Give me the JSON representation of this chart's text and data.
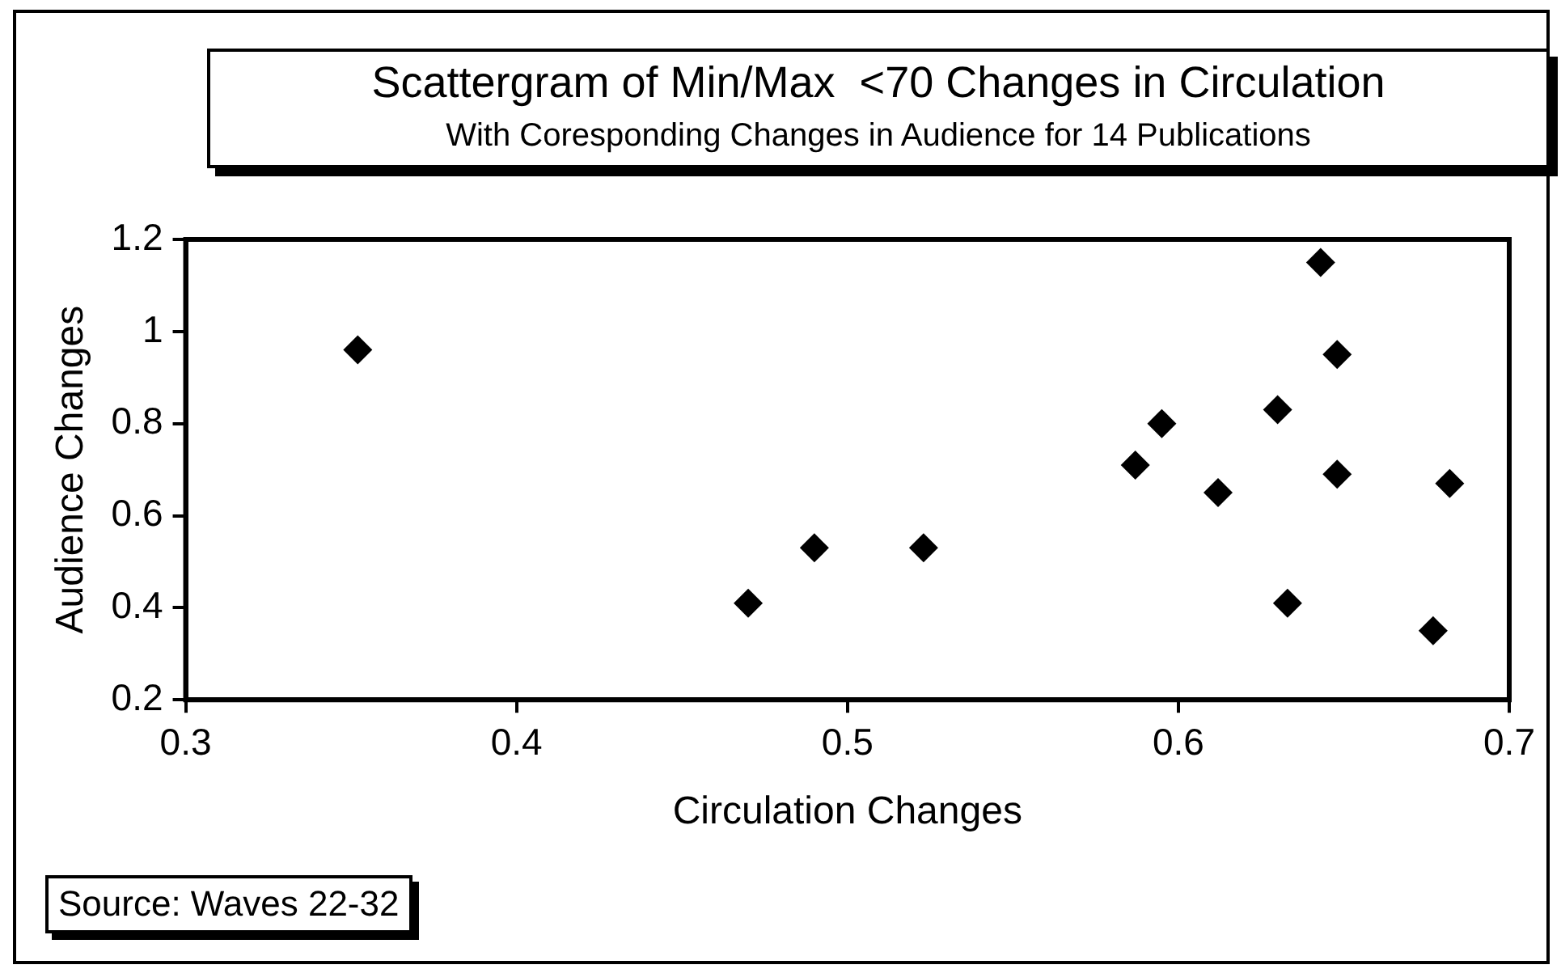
{
  "chart_data": {
    "type": "scatter",
    "title": "Scattergram of Min/Max  <70 Changes in Circulation",
    "subtitle": "With Coresponding Changes in Audience for 14 Publications",
    "xlabel": "Circulation Changes",
    "ylabel": "Audience Changes",
    "annotations": [
      "Source: Waves 22-32"
    ],
    "x": [
      0.352,
      0.47,
      0.49,
      0.523,
      0.587,
      0.595,
      0.612,
      0.63,
      0.633,
      0.643,
      0.648,
      0.648,
      0.677,
      0.682
    ],
    "series": [
      {
        "color": "#000000",
        "values": [
          0.96,
          0.41,
          0.53,
          0.53,
          0.71,
          0.8,
          0.65,
          0.83,
          0.41,
          1.15,
          0.95,
          0.69,
          0.35,
          0.67
        ]
      }
    ],
    "xlim": [
      0.3,
      0.7
    ],
    "xticks": [
      0.3,
      0.4,
      0.5,
      0.6,
      0.7
    ],
    "ylim": [
      0.2,
      1.2
    ],
    "yticks": [
      0.2,
      0.4,
      0.6,
      0.8,
      1,
      1.2
    ],
    "grid": false,
    "legend": false,
    "marker": "diamond"
  }
}
